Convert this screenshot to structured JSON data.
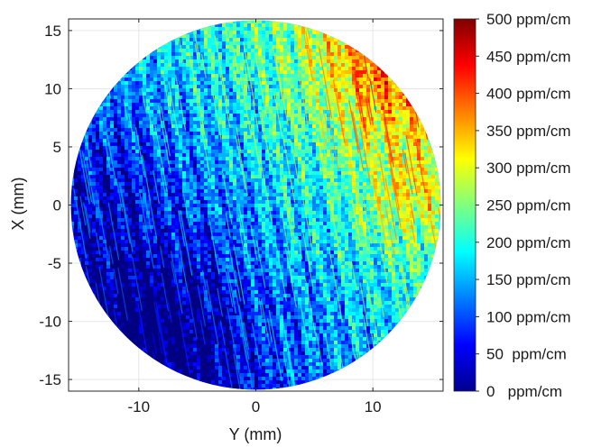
{
  "chart_data": {
    "type": "heatmap",
    "title": "",
    "xlabel": "Y (mm)",
    "ylabel": "X (mm)",
    "xlim": [
      -16,
      16
    ],
    "ylim": [
      -16,
      16
    ],
    "x_ticks": [
      -10,
      0,
      10
    ],
    "y_ticks": [
      15,
      10,
      5,
      0,
      -5,
      -10,
      -15
    ],
    "grid": true,
    "field_shape": "circle",
    "field_radius_mm": 15.8,
    "colormap": "jet",
    "colorbar": {
      "min": 0,
      "max": 500,
      "labels": [
        "500 ppm/cm",
        "450 ppm/cm",
        "400 ppm/cm",
        "350 ppm/cm",
        "300 ppm/cm",
        "250 ppm/cm",
        "200 ppm/cm",
        "150 ppm/cm",
        "100 ppm/cm",
        "50  ppm/cm",
        "0   ppm/cm"
      ],
      "values": [
        500,
        450,
        400,
        350,
        300,
        250,
        200,
        150,
        100,
        50,
        0
      ],
      "placement": "right"
    },
    "value_regions": [
      {
        "region": "lower-left",
        "approx_ppm_per_cm": 40
      },
      {
        "region": "center",
        "approx_ppm_per_cm": 130
      },
      {
        "region": "upper-center",
        "approx_ppm_per_cm": 220
      },
      {
        "region": "right edge",
        "approx_ppm_per_cm": 330
      },
      {
        "region": "upper-right",
        "approx_ppm_per_cm": 480
      }
    ]
  }
}
